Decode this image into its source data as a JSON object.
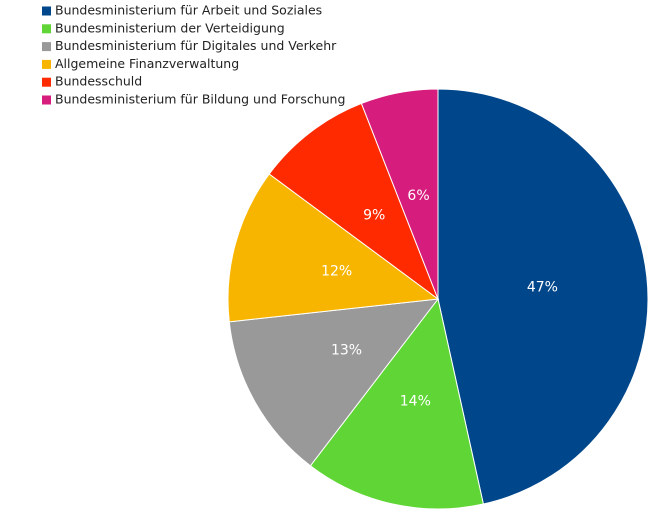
{
  "chart_data": {
    "type": "pie",
    "categories": [
      "Bundesministerium für Arbeit und Soziales",
      "Bundesministerium der Verteidigung",
      "Bundesministerium für Digitales und Verkehr",
      "Allgemeine Finanzverwaltung",
      "Bundesschuld",
      "Bundesministerium für Bildung und Forschung"
    ],
    "values": [
      47,
      14,
      13,
      12,
      9,
      6
    ],
    "value_labels": [
      "47%",
      "14%",
      "13%",
      "12%",
      "9%",
      "6%"
    ],
    "colors": [
      "#00468b",
      "#5fd635",
      "#999999",
      "#f8b500",
      "#ff2a00",
      "#d61c7c"
    ],
    "legend": "top-left"
  }
}
